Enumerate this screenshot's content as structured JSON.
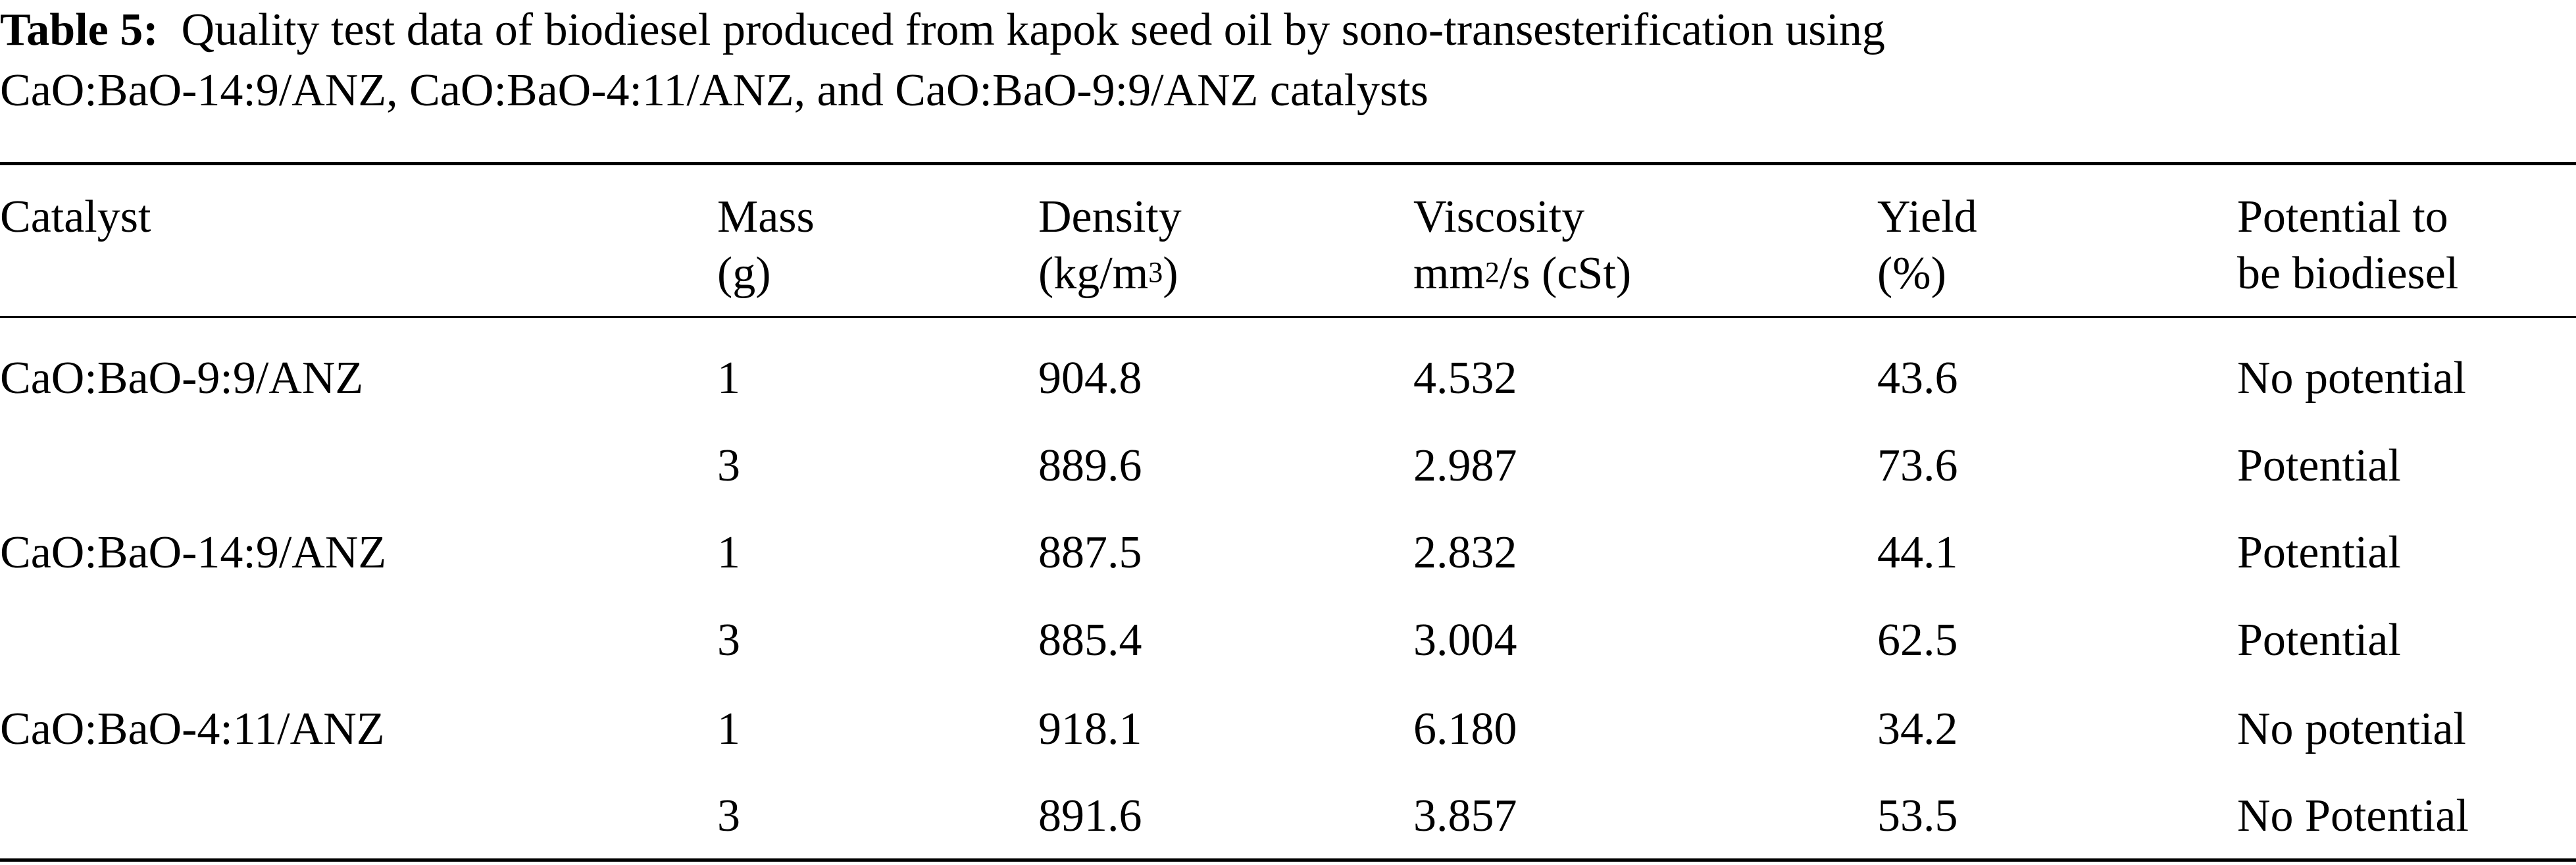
{
  "caption": {
    "label": "Table 5:",
    "line1": "Quality test data of biodiesel produced from kapok seed oil by sono-transesterification using",
    "line2": "CaO:BaO-14:9/ANZ, CaO:BaO-4:11/ANZ, and CaO:BaO-9:9/ANZ catalysts"
  },
  "headers": {
    "catalyst": "Catalyst",
    "mass_1": "Mass",
    "mass_2": "(g)",
    "density_1": "Density",
    "density_2a": "(kg/m",
    "density_sup": "3",
    "density_2b": ")",
    "viscosity_1": "Viscosity",
    "viscosity_2a": "mm",
    "viscosity_sup": "2",
    "viscosity_2b": "/s (cSt)",
    "yield_1": "Yield",
    "yield_2": "(%)",
    "potential_1": "Potential to",
    "potential_2": "be biodiesel"
  },
  "rows": [
    {
      "catalyst": "CaO:BaO-9:9/ANZ",
      "mass": "1",
      "density": "904.8",
      "viscosity": "4.532",
      "yield": "43.6",
      "potential": "No potential"
    },
    {
      "catalyst": "",
      "mass": "3",
      "density": "889.6",
      "viscosity": "2.987",
      "yield": "73.6",
      "potential": "Potential"
    },
    {
      "catalyst": "CaO:BaO-14:9/ANZ",
      "mass": "1",
      "density": "887.5",
      "viscosity": "2.832",
      "yield": "44.1",
      "potential": "Potential"
    },
    {
      "catalyst": "",
      "mass": "3",
      "density": "885.4",
      "viscosity": "3.004",
      "yield": "62.5",
      "potential": "Potential"
    },
    {
      "catalyst": "CaO:BaO-4:11/ANZ",
      "mass": "1",
      "density": "918.1",
      "viscosity": "6.180",
      "yield": "34.2",
      "potential": "No potential"
    },
    {
      "catalyst": "",
      "mass": "3",
      "density": "891.6",
      "viscosity": "3.857",
      "yield": "53.5",
      "potential": "No Potential"
    }
  ]
}
